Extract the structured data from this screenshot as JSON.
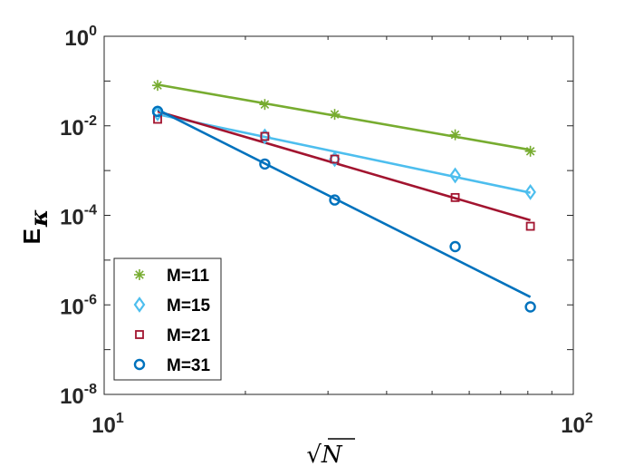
{
  "chart_data": {
    "type": "line",
    "xscale": "log",
    "yscale": "log",
    "xlim": [
      10,
      100
    ],
    "ylim": [
      1e-08,
      1
    ],
    "xlabel_parts": {
      "base": "N",
      "prefix": "√"
    },
    "ylabel_parts": {
      "base": "E",
      "sub": "κ"
    },
    "x_ticks": [
      {
        "base": "10",
        "exp": "1",
        "value": 10
      },
      {
        "base": "10",
        "exp": "2",
        "value": 100
      }
    ],
    "y_ticks": [
      {
        "base": "10",
        "exp": "0",
        "value": 1
      },
      {
        "base": "10",
        "exp": "-2",
        "value": 0.01
      },
      {
        "base": "10",
        "exp": "-4",
        "value": 0.0001
      },
      {
        "base": "10",
        "exp": "-6",
        "value": 1e-06
      },
      {
        "base": "10",
        "exp": "-8",
        "value": 1e-08
      }
    ],
    "legend_position": "bottom-left",
    "series": [
      {
        "name": "M=11",
        "color": "#77AC30",
        "marker": "star",
        "points": [
          [
            13,
            0.08
          ],
          [
            22,
            0.03
          ],
          [
            31,
            0.018
          ],
          [
            56,
            0.0063
          ],
          [
            81,
            0.0027
          ]
        ],
        "fit": [
          [
            13,
            0.083
          ],
          [
            81,
            0.0029
          ]
        ]
      },
      {
        "name": "M=15",
        "color": "#4DBEEE",
        "marker": "diamond",
        "points": [
          [
            13,
            0.019
          ],
          [
            22,
            0.0058
          ],
          [
            31,
            0.0018
          ],
          [
            56,
            0.00078
          ],
          [
            81,
            0.00033
          ]
        ],
        "fit": [
          [
            13,
            0.018
          ],
          [
            81,
            0.00032
          ]
        ]
      },
      {
        "name": "M=21",
        "color": "#A2142F",
        "marker": "square",
        "points": [
          [
            13,
            0.014
          ],
          [
            22,
            0.0058
          ],
          [
            31,
            0.0018
          ],
          [
            56,
            0.00025
          ],
          [
            81,
            5.7e-05
          ]
        ],
        "fit": [
          [
            13,
            0.021
          ],
          [
            81,
            7.8e-05
          ]
        ]
      },
      {
        "name": "M=31",
        "color": "#0072BD",
        "marker": "circle",
        "points": [
          [
            13,
            0.021
          ],
          [
            22,
            0.0014
          ],
          [
            31,
            0.00022
          ],
          [
            56,
            2e-05
          ],
          [
            81,
            9e-07
          ]
        ],
        "fit": [
          [
            13,
            0.023
          ],
          [
            81,
            1.5e-06
          ]
        ]
      }
    ]
  }
}
